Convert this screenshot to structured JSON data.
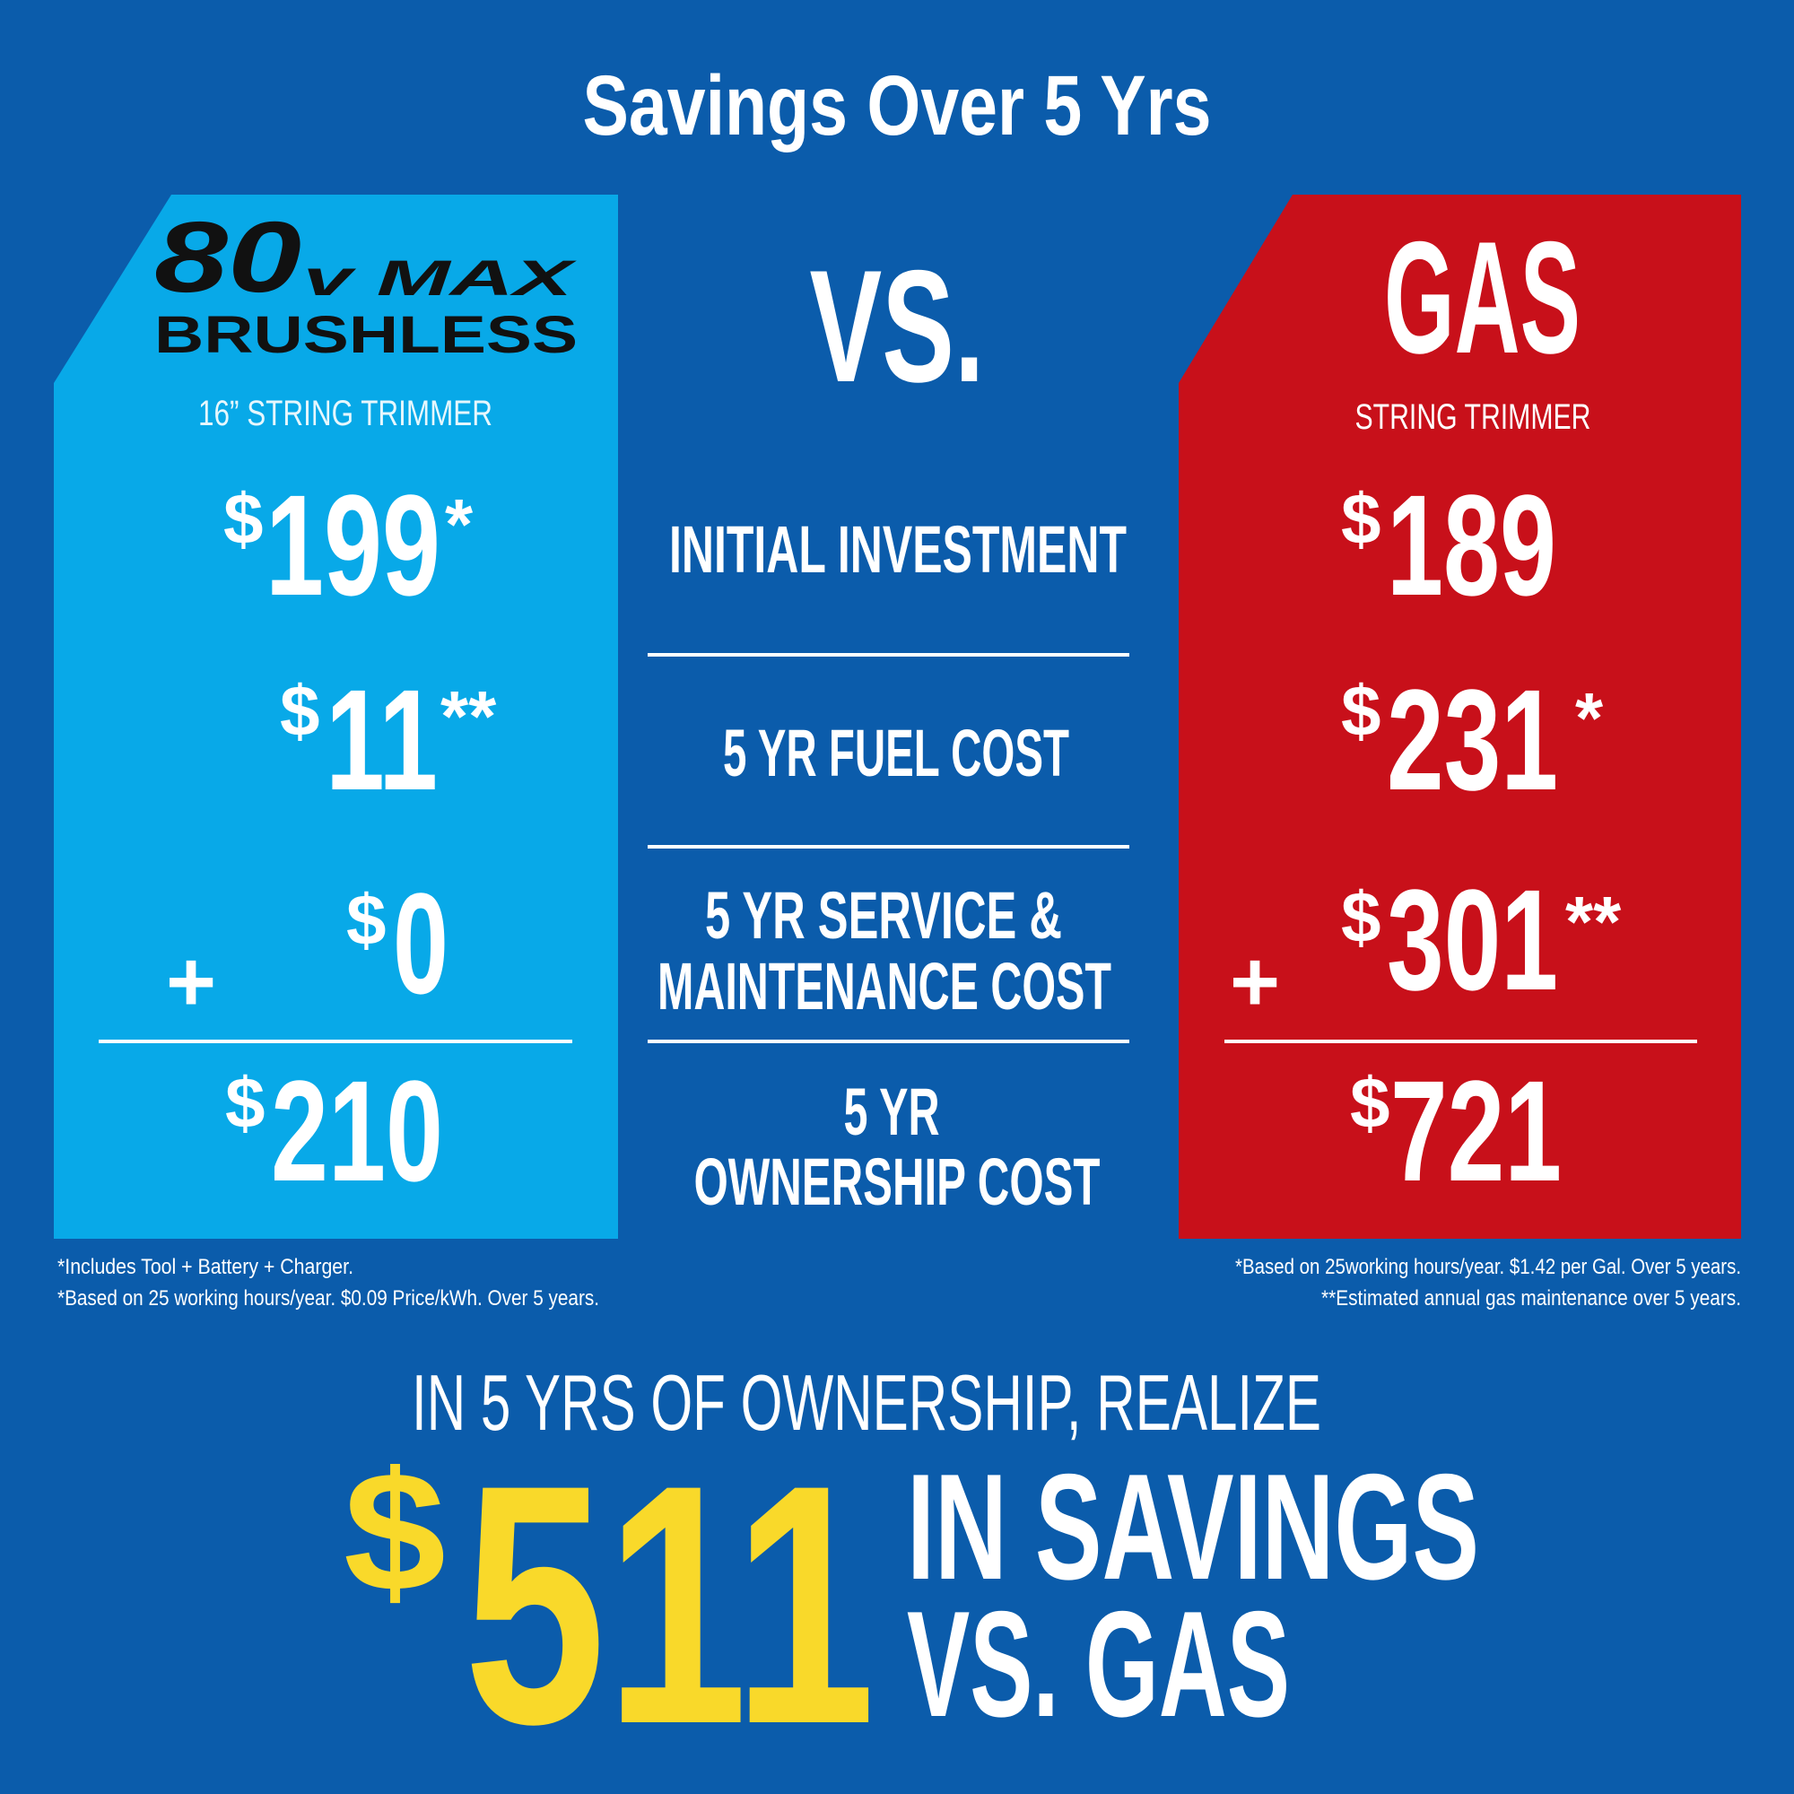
{
  "title": "Savings Over 5 Yrs",
  "currency": "$",
  "vs": "VS.",
  "left": {
    "brand": {
      "number": "80",
      "volt": "v MAX",
      "line": "BRUSHLESS"
    },
    "subtitle": "16” STRING TRIMMER",
    "plus": "+",
    "rows": [
      {
        "amount": 199,
        "note": "*"
      },
      {
        "amount": 11,
        "note": "**"
      },
      {
        "amount": 0
      },
      {
        "amount": 210
      }
    ],
    "footnotes": [
      "*Includes Tool + Battery + Charger.",
      "*Based on 25 working hours/year. $0.09 Price/kWh. Over 5 years."
    ]
  },
  "labels": [
    [
      "INITIAL INVESTMENT"
    ],
    [
      "5 YR FUEL COST"
    ],
    [
      "5 YR SERVICE &",
      "MAINTENANCE COST"
    ],
    [
      "5 YR",
      "OWNERSHIP COST"
    ]
  ],
  "right": {
    "name": "GAS",
    "subtitle": "STRING TRIMMER",
    "plus": "+",
    "rows": [
      {
        "amount": 189
      },
      {
        "amount": 231,
        "note": "*"
      },
      {
        "amount": 301,
        "note": "**"
      },
      {
        "amount": 721
      }
    ],
    "footnotes": [
      "*Based on 25working hours/year. $1.42 per Gal. Over 5 years.",
      "**Estimated annual gas maintenance over 5 years."
    ]
  },
  "savings": {
    "lead": "IN 5 YRS OF OWNERSHIP, REALIZE",
    "amount": 511,
    "line1": "IN SAVINGS",
    "line2": "VS. GAS"
  }
}
